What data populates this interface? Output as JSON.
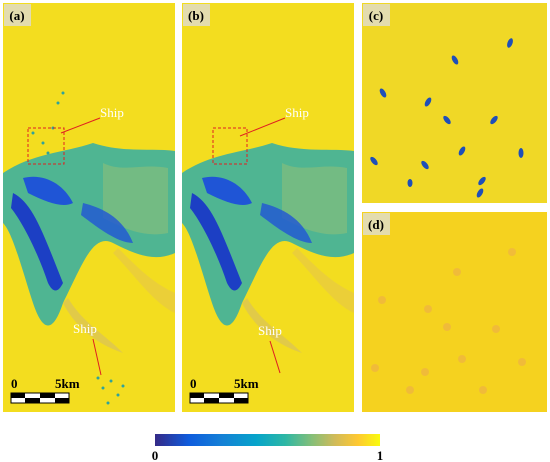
{
  "panels": [
    {
      "label": "(a)",
      "annotations": [
        "Ship",
        "Ship"
      ],
      "scale_bar": {
        "zero": "0",
        "length": "5km"
      }
    },
    {
      "label": "(b)",
      "annotations": [
        "Ship",
        "Ship"
      ],
      "scale_bar": {
        "zero": "0",
        "length": "5km"
      }
    },
    {
      "label": "(c)"
    },
    {
      "label": "(d)"
    }
  ],
  "colorbar": {
    "ticks": [
      0,
      1
    ]
  }
}
